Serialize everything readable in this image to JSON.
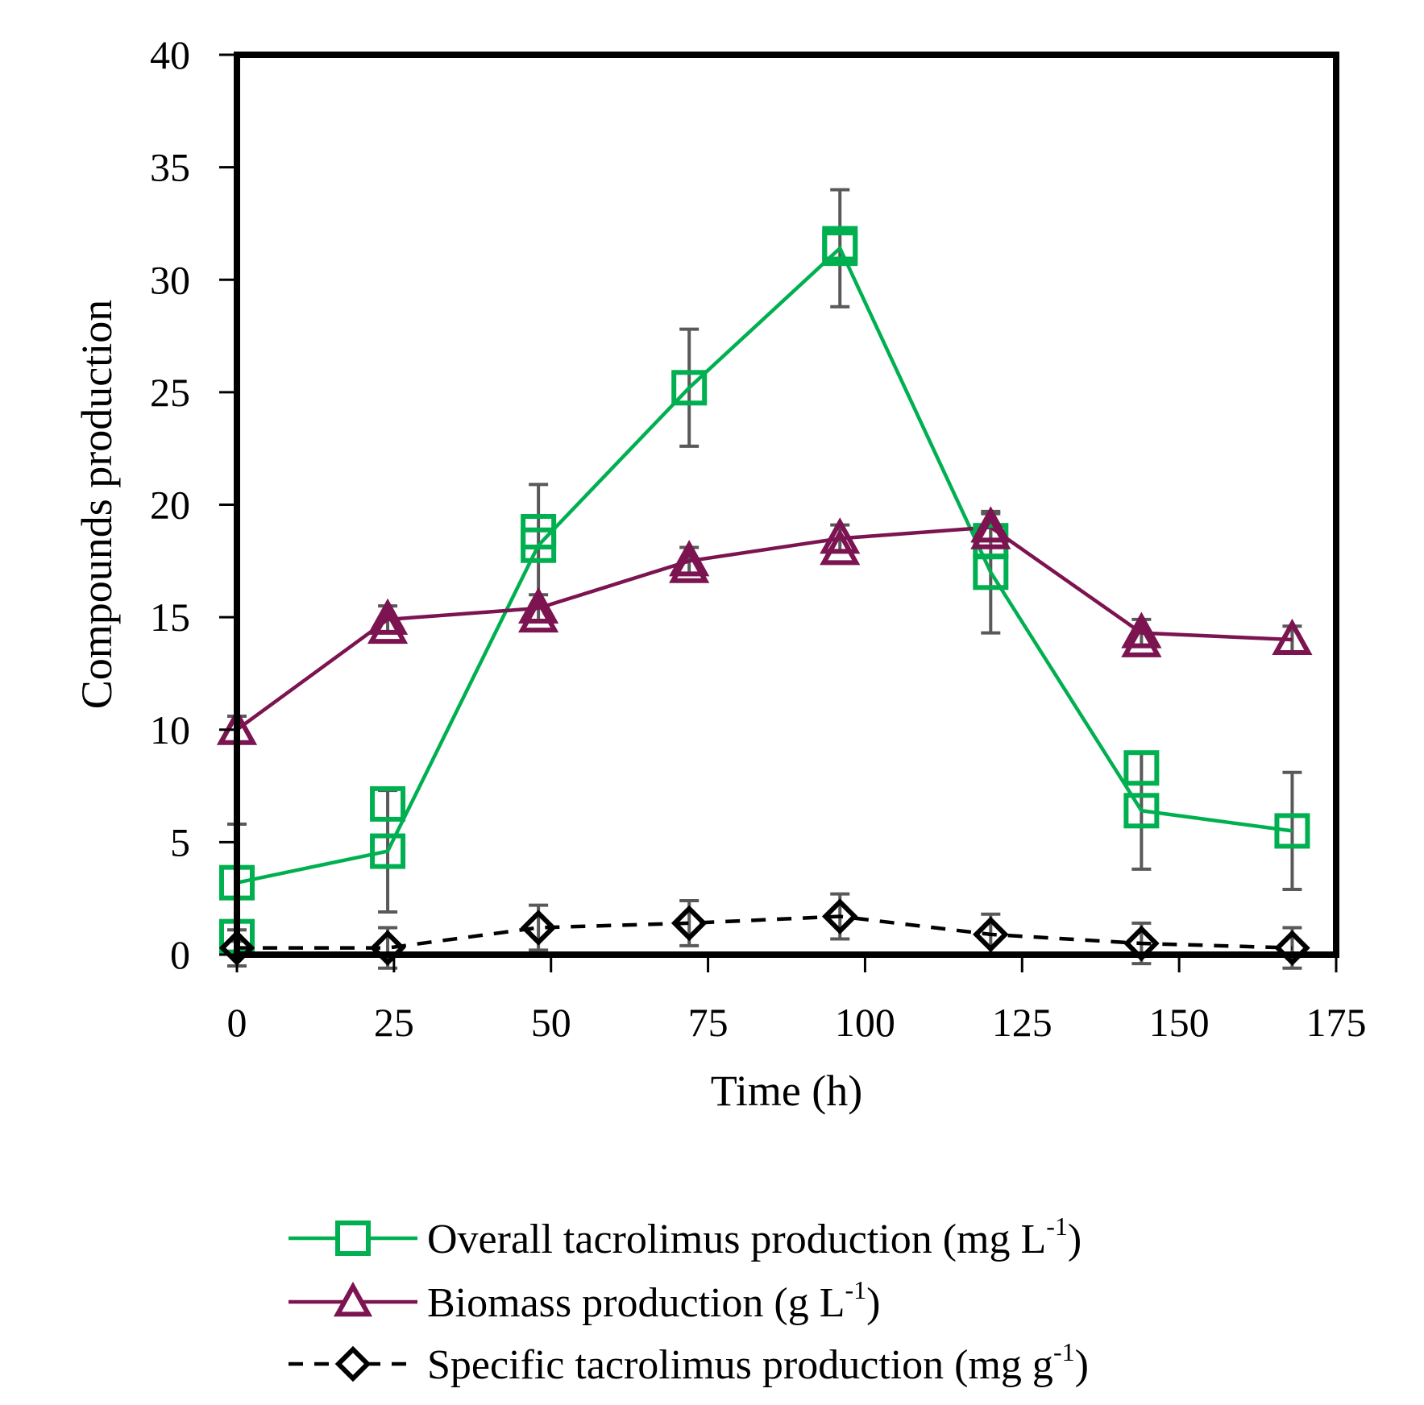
{
  "chart_data": {
    "type": "line",
    "title": "",
    "xlabel": "Time (h)",
    "ylabel": "Compounds production",
    "xlim": [
      0,
      175
    ],
    "ylim": [
      0,
      40
    ],
    "xticks": [
      0,
      25,
      50,
      75,
      100,
      125,
      150,
      175
    ],
    "yticks": [
      0,
      5,
      10,
      15,
      20,
      25,
      30,
      35,
      40
    ],
    "grid": false,
    "legend_position": "bottom",
    "series": [
      {
        "name": "Overall tacrolimus production (mg L-1)",
        "legend_main": "Overall tacrolimus production (mg L",
        "legend_sup": "-1",
        "legend_tail": ")",
        "color": "#00b050",
        "marker": "square",
        "line_style": "solid",
        "points": [
          {
            "x": 0,
            "y": 3.2,
            "err": 2.6
          },
          {
            "x": 24,
            "y": 4.6,
            "err": 2.7
          },
          {
            "x": 48,
            "y": 18.2,
            "err": 2.7
          },
          {
            "x": 72,
            "y": 25.2,
            "err": 2.6
          },
          {
            "x": 96,
            "y": 31.4,
            "err": 2.6
          },
          {
            "x": 120,
            "y": 17.0,
            "err": 2.7
          },
          {
            "x": 144,
            "y": 6.4,
            "err": 2.6
          },
          {
            "x": 168,
            "y": 5.5,
            "err": 2.6
          }
        ],
        "replicates": [
          {
            "x": 0,
            "y": 0.8
          },
          {
            "x": 24,
            "y": 6.7
          },
          {
            "x": 48,
            "y": 18.8
          },
          {
            "x": 96,
            "y": 31.6
          },
          {
            "x": 120,
            "y": 18.4
          },
          {
            "x": 144,
            "y": 8.3
          }
        ]
      },
      {
        "name": "Biomass production (g L-1)",
        "legend_main": "Biomass production (g L",
        "legend_sup": "-1",
        "legend_tail": ")",
        "color": "#7b1450",
        "marker": "triangle",
        "line_style": "solid",
        "points": [
          {
            "x": 0,
            "y": 10.0,
            "err": 0.6
          },
          {
            "x": 24,
            "y": 14.9,
            "err": 0.6
          },
          {
            "x": 48,
            "y": 15.4,
            "err": 0.6
          },
          {
            "x": 72,
            "y": 17.5,
            "err": 0.6
          },
          {
            "x": 96,
            "y": 18.5,
            "err": 0.6
          },
          {
            "x": 120,
            "y": 19.0,
            "err": 0.6
          },
          {
            "x": 144,
            "y": 14.3,
            "err": 0.6
          },
          {
            "x": 168,
            "y": 14.0,
            "err": 0.6
          }
        ],
        "replicates": [
          {
            "x": 24,
            "y": 14.5
          },
          {
            "x": 48,
            "y": 15.0
          },
          {
            "x": 72,
            "y": 17.2
          },
          {
            "x": 96,
            "y": 18.0
          },
          {
            "x": 120,
            "y": 18.7
          },
          {
            "x": 144,
            "y": 13.9
          }
        ]
      },
      {
        "name": "Specific tacrolimus production (mg g-1)",
        "legend_main": "Specific tacrolimus production (mg g",
        "legend_sup": "-1",
        "legend_tail": ")",
        "color": "#000000",
        "marker": "diamond",
        "line_style": "dashed",
        "points": [
          {
            "x": 0,
            "y": 0.3,
            "err": 0.8
          },
          {
            "x": 24,
            "y": 0.3,
            "err": 0.9
          },
          {
            "x": 48,
            "y": 1.2,
            "err": 1.0
          },
          {
            "x": 72,
            "y": 1.4,
            "err": 1.0
          },
          {
            "x": 96,
            "y": 1.7,
            "err": 1.0
          },
          {
            "x": 120,
            "y": 0.9,
            "err": 0.9
          },
          {
            "x": 144,
            "y": 0.5,
            "err": 0.9
          },
          {
            "x": 168,
            "y": 0.3,
            "err": 0.9
          }
        ],
        "replicates": []
      }
    ]
  }
}
